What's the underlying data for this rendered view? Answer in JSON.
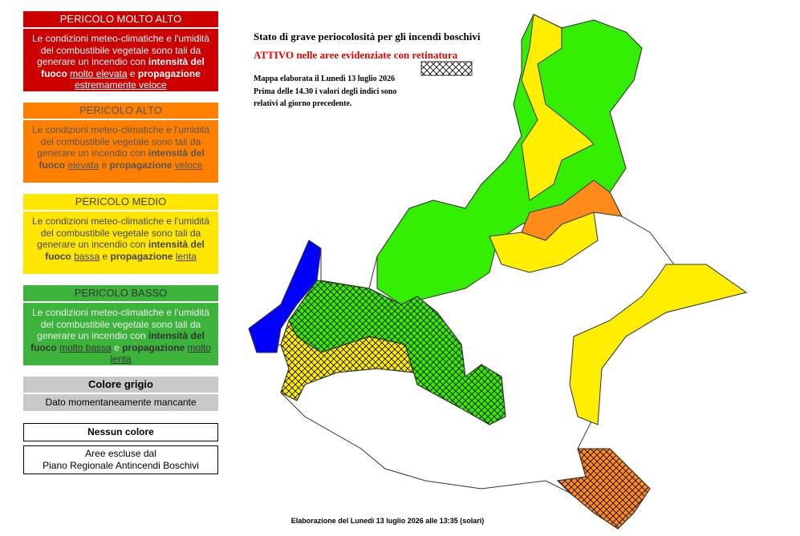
{
  "legend": [
    {
      "title": "PERICOLO MOLTO ALTO",
      "text": "Le condizioni meteo-climatiche e l'umidità del combustibile vegetale sono tali da generare un incendio con",
      "intensity_label": "intensità del fuoco",
      "intensity": "molto elevata",
      "conj": "e",
      "propagation_label": "propagazione",
      "propagation": "estremamente veloce"
    },
    {
      "title": "PERICOLO ALTO",
      "text": "Le condizioni meteo-climatiche e l'umidità del combustibile vegetale sono tali da generare un incendio con",
      "intensity_label": "intensità del fuoco",
      "intensity": "elevata",
      "conj": "e",
      "propagation_label": "propagazione",
      "propagation": "veloce"
    },
    {
      "title": "PERICOLO MEDIO",
      "text": "Le condizioni meteo-climatiche e l'umidità del combustibile vegetale sono tali da generare un incendio con",
      "intensity_label": "intensità del fuoco",
      "intensity": "bassa",
      "conj": "e",
      "propagation_label": "propagazione",
      "propagation": "lenta"
    },
    {
      "title": "PERICOLO BASSO",
      "text": "Le condizioni meteo-climatiche e l'umidità del combustibile vegetale sono tali da generare un incendio con",
      "intensity_label": "intensità del fuoco",
      "intensity": "molto bassa",
      "conj": "e",
      "propagation_label": "propagazione",
      "propagation": "molto lenta"
    }
  ],
  "grey": {
    "title": "Colore grigio",
    "text": "Dato momentaneamente mancante"
  },
  "none": {
    "title": "Nessun colore",
    "text": [
      "Aree escluse dal",
      "Piano Regionale Antincendi Boschivi"
    ]
  },
  "map": {
    "title": "Stato di grave periocolosità per gli incendi boschivi",
    "status": "ATTIVO nelle aree evidenziate con retinatura",
    "note": [
      "Mappa elaborata il Lunedì 13 luglio 2026",
      "Prima delle 14.30 i valori degli indici sono",
      "relativi al giorno precedente."
    ],
    "footer": "Elaborazione del Lunedì 13 luglio 2026 alle 13:35 (solari)"
  }
}
